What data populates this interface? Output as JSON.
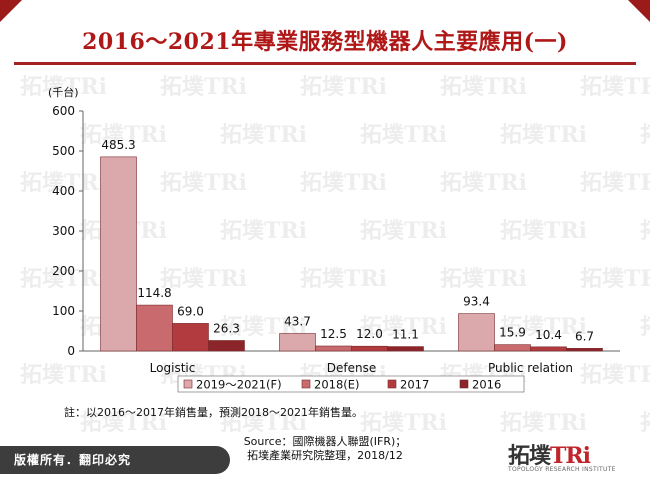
{
  "title": "2016～2021年專業服務型機器人主要應用(一)",
  "note": "註：以2016～2017年銷售量，預測2018～2021年銷售量。",
  "source": {
    "line1": "Source：國際機器人聯盟(IFR)；",
    "line2": "拓墣產業研究院整理，2018/12"
  },
  "footer": {
    "text": "版權所有．翻印必究"
  },
  "logo": {
    "main": "拓墣",
    "accent": "TRi",
    "sub": "TOPOLOGY RESEARCH INSTITUTE"
  },
  "watermark": {
    "text": "拓墣TRi"
  },
  "chart_data": {
    "type": "bar",
    "unit_label": "(千台)",
    "categories": [
      "Logistic",
      "Defense",
      "Public relation"
    ],
    "series": [
      {
        "name": "2019～2021(F)",
        "values": [
          485.3,
          43.7,
          93.4
        ],
        "color": "#dba9ab"
      },
      {
        "name": "2018(E)",
        "values": [
          114.8,
          12.5,
          15.9
        ],
        "color": "#c96b6e"
      },
      {
        "name": "2017",
        "values": [
          69.0,
          12.0,
          10.4
        ],
        "color": "#b23b3f"
      },
      {
        "name": "2016",
        "values": [
          26.3,
          11.1,
          6.7
        ],
        "color": "#8c2529"
      }
    ],
    "value_labels": [
      [
        "485.3",
        "43.7",
        "93.4"
      ],
      [
        "114.8",
        "12.5",
        "15.9"
      ],
      [
        "69.0",
        "12.0",
        "10.4"
      ],
      [
        "26.3",
        "11.1",
        "6.7"
      ]
    ],
    "yticks": [
      "0",
      "100",
      "200",
      "300",
      "400",
      "500",
      "600"
    ],
    "ylim": [
      0,
      600
    ],
    "grid": false,
    "legend_position": "bottom"
  }
}
